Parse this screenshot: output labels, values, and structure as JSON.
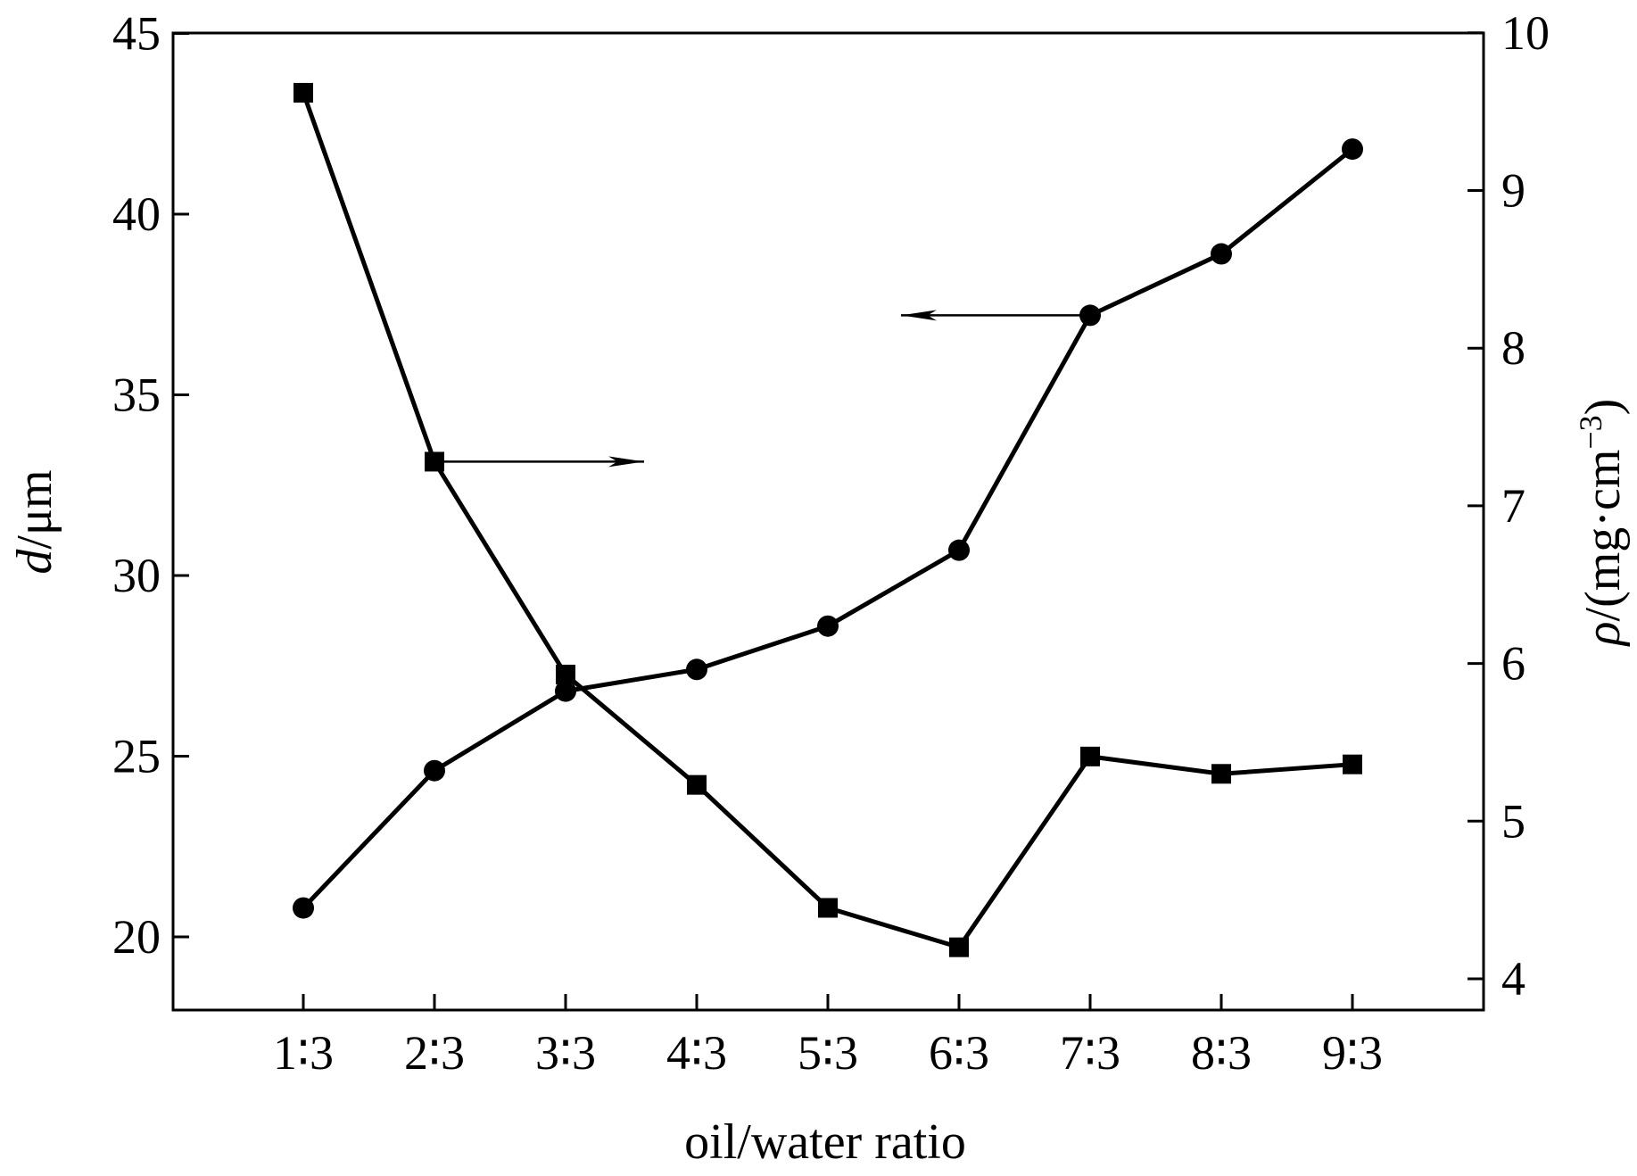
{
  "chart_data": {
    "type": "line",
    "xlabel": "oil/water ratio",
    "categories": [
      "1∶3",
      "2∶3",
      "3∶3",
      "4∶3",
      "5∶3",
      "6∶3",
      "7∶3",
      "8∶3",
      "9∶3"
    ],
    "ylabel_left": {
      "symbol": "d",
      "unit": "/μm"
    },
    "ylabel_right": {
      "symbol": "ρ",
      "unit": "/(mg·cm",
      "sup": "−3",
      "close": ")"
    },
    "ylim_left": [
      18,
      45
    ],
    "yticks_left": [
      20,
      25,
      30,
      35,
      40,
      45
    ],
    "ylim_right": [
      3.8,
      10
    ],
    "yticks_right": [
      4,
      5,
      6,
      7,
      8,
      9,
      10
    ],
    "series": [
      {
        "name": "d",
        "axis": "left",
        "marker": "circle",
        "values": [
          20.8,
          24.6,
          26.8,
          27.4,
          28.6,
          30.7,
          37.2,
          38.9,
          41.8
        ]
      },
      {
        "name": "rho",
        "axis": "right",
        "marker": "square",
        "values": [
          9.62,
          7.28,
          5.93,
          5.23,
          4.45,
          4.2,
          5.41,
          5.3,
          5.36
        ]
      }
    ],
    "annotations": [
      {
        "direction": "right",
        "points_to_axis": "right",
        "series": "rho"
      },
      {
        "direction": "left",
        "points_to_axis": "left",
        "series": "d"
      }
    ],
    "colors": {
      "line": "#000000",
      "background": "#ffffff"
    }
  }
}
